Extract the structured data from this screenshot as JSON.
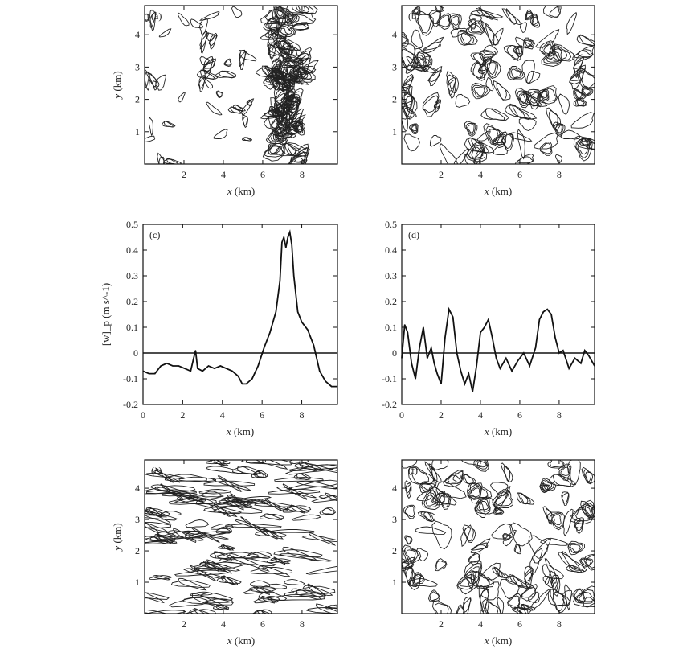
{
  "chart_data": [
    {
      "panel": "a",
      "label": "(a)",
      "type": "heatmap",
      "xlabel": "x (km)",
      "ylabel": "y (km)",
      "xlim": [
        0,
        9.8
      ],
      "ylim": [
        0,
        4.9
      ],
      "x_ticks": [
        "2",
        "4",
        "6",
        "8"
      ],
      "y_ticks": [
        "1",
        "2",
        "3",
        "4"
      ],
      "contour_pattern": "band"
    },
    {
      "panel": "b",
      "label": "(b)",
      "type": "heatmap",
      "xlabel": "x (km)",
      "ylabel": "",
      "xlim": [
        0,
        9.8
      ],
      "ylim": [
        0,
        4.9
      ],
      "x_ticks": [
        "2",
        "4",
        "6",
        "8"
      ],
      "y_ticks": [
        "1",
        "2",
        "3",
        "4"
      ],
      "contour_pattern": "cellular"
    },
    {
      "panel": "c",
      "label": "(c)",
      "type": "line",
      "xlabel": "x (km)",
      "ylabel": "[w]_p (m s^-1)",
      "xlim": [
        0,
        9.8
      ],
      "ylim": [
        -0.2,
        0.5
      ],
      "x_ticks": [
        "0",
        "2",
        "4",
        "6",
        "8"
      ],
      "y_ticks": [
        "-0.2",
        "-0.1",
        "0",
        "0.1",
        "0.2",
        "0.3",
        "0.4",
        "0.5"
      ],
      "series": [
        {
          "x": [
            0,
            0.3,
            0.6,
            0.9,
            1.2,
            1.5,
            1.8,
            2.1,
            2.4,
            2.55,
            2.65,
            2.75,
            3.0,
            3.3,
            3.6,
            3.9,
            4.2,
            4.5,
            4.8,
            5.0,
            5.2,
            5.5,
            5.8,
            6.1,
            6.4,
            6.7,
            6.9,
            7.0,
            7.1,
            7.2,
            7.3,
            7.4,
            7.5,
            7.6,
            7.8,
            8.0,
            8.3,
            8.6,
            8.9,
            9.2,
            9.5,
            9.8
          ],
          "values": [
            -0.07,
            -0.08,
            -0.08,
            -0.05,
            -0.04,
            -0.05,
            -0.05,
            -0.06,
            -0.07,
            -0.02,
            0.01,
            -0.06,
            -0.07,
            -0.05,
            -0.06,
            -0.05,
            -0.06,
            -0.07,
            -0.09,
            -0.12,
            -0.12,
            -0.1,
            -0.05,
            0.02,
            0.08,
            0.16,
            0.28,
            0.43,
            0.45,
            0.41,
            0.45,
            0.47,
            0.42,
            0.3,
            0.16,
            0.12,
            0.09,
            0.03,
            -0.07,
            -0.11,
            -0.13,
            -0.13
          ]
        }
      ]
    },
    {
      "panel": "d",
      "label": "(d)",
      "type": "line",
      "xlabel": "x (km)",
      "ylabel": "",
      "xlim": [
        0,
        9.8
      ],
      "ylim": [
        -0.2,
        0.5
      ],
      "x_ticks": [
        "0",
        "2",
        "4",
        "6",
        "8"
      ],
      "y_ticks": [
        "-0.2",
        "-0.1",
        "0",
        "0.1",
        "0.2",
        "0.3",
        "0.4",
        "0.5"
      ],
      "series": [
        {
          "x": [
            0,
            0.15,
            0.3,
            0.5,
            0.7,
            0.9,
            1.1,
            1.3,
            1.5,
            1.65,
            1.8,
            2.0,
            2.2,
            2.4,
            2.6,
            2.8,
            3.0,
            3.2,
            3.4,
            3.6,
            3.8,
            4.0,
            4.2,
            4.4,
            4.6,
            4.8,
            5.0,
            5.3,
            5.6,
            5.9,
            6.2,
            6.5,
            6.8,
            7.0,
            7.2,
            7.4,
            7.6,
            7.8,
            8.0,
            8.2,
            8.5,
            8.8,
            9.1,
            9.3,
            9.5,
            9.8
          ],
          "values": [
            -0.02,
            0.11,
            0.08,
            -0.04,
            -0.1,
            0.02,
            0.1,
            -0.02,
            0.02,
            -0.04,
            -0.08,
            -0.12,
            0.06,
            0.17,
            0.14,
            0.0,
            -0.07,
            -0.12,
            -0.08,
            -0.15,
            -0.05,
            0.08,
            0.1,
            0.13,
            0.06,
            -0.02,
            -0.06,
            -0.02,
            -0.07,
            -0.03,
            0.0,
            -0.05,
            0.02,
            0.13,
            0.16,
            0.17,
            0.15,
            0.06,
            0.0,
            0.01,
            -0.06,
            -0.02,
            -0.04,
            0.01,
            -0.01,
            -0.05
          ]
        }
      ]
    },
    {
      "panel": "e",
      "label": "(e)",
      "type": "heatmap",
      "xlabel": "x (km)",
      "ylabel": "y (km)",
      "xlim": [
        0,
        9.8
      ],
      "ylim": [
        0,
        4.9
      ],
      "x_ticks": [
        "2",
        "4",
        "6",
        "8"
      ],
      "y_ticks": [
        "1",
        "2",
        "3",
        "4"
      ],
      "contour_pattern": "streaks"
    },
    {
      "panel": "f",
      "label": "(f)",
      "type": "heatmap",
      "xlabel": "x (km)",
      "ylabel": "",
      "xlim": [
        0,
        9.8
      ],
      "ylim": [
        0,
        4.9
      ],
      "x_ticks": [
        "2",
        "4",
        "6",
        "8"
      ],
      "y_ticks": [
        "1",
        "2",
        "3",
        "4"
      ],
      "contour_pattern": "cellular"
    }
  ],
  "colors": {
    "line": "#111111",
    "contour": "#222222",
    "background": "#ffffff"
  }
}
